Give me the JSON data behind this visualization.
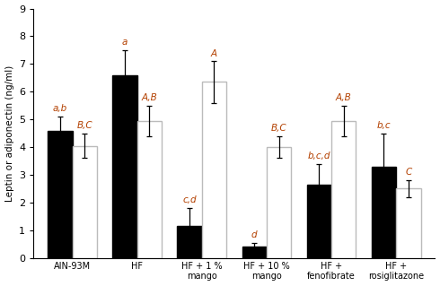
{
  "categories": [
    "AIN-93M",
    "HF",
    "HF + 1 %\nmango",
    "HF + 10 %\nmango",
    "HF +\nfenofibrate",
    "HF +\nrosiglitazone"
  ],
  "black_values": [
    4.6,
    6.6,
    1.15,
    0.4,
    2.65,
    3.3
  ],
  "white_values": [
    4.05,
    4.95,
    6.35,
    4.0,
    4.95,
    2.5
  ],
  "black_errors": [
    0.5,
    0.9,
    0.65,
    0.15,
    0.75,
    1.2
  ],
  "white_errors": [
    0.45,
    0.55,
    0.75,
    0.4,
    0.55,
    0.3
  ],
  "black_labels": [
    "a,b",
    "a",
    "c,d",
    "d",
    "b,c,d",
    "b,c"
  ],
  "white_labels": [
    "B,C",
    "A,B",
    "A",
    "B,C",
    "A,B",
    "C"
  ],
  "ylabel": "Leptin or adiponectin (ng/ml)",
  "ylim": [
    0,
    9
  ],
  "yticks": [
    0,
    1,
    2,
    3,
    4,
    5,
    6,
    7,
    8,
    9
  ],
  "bar_width": 0.38,
  "black_color": "#000000",
  "white_color": "#ffffff",
  "white_edge_color": "#bbbbbb",
  "annotation_color": "#b34000",
  "background_color": "#ffffff",
  "fontsize_ylabel": 7.5,
  "fontsize_annotations": 7.5,
  "fontsize_xticks": 7.0,
  "fontsize_yticks": 8.0
}
